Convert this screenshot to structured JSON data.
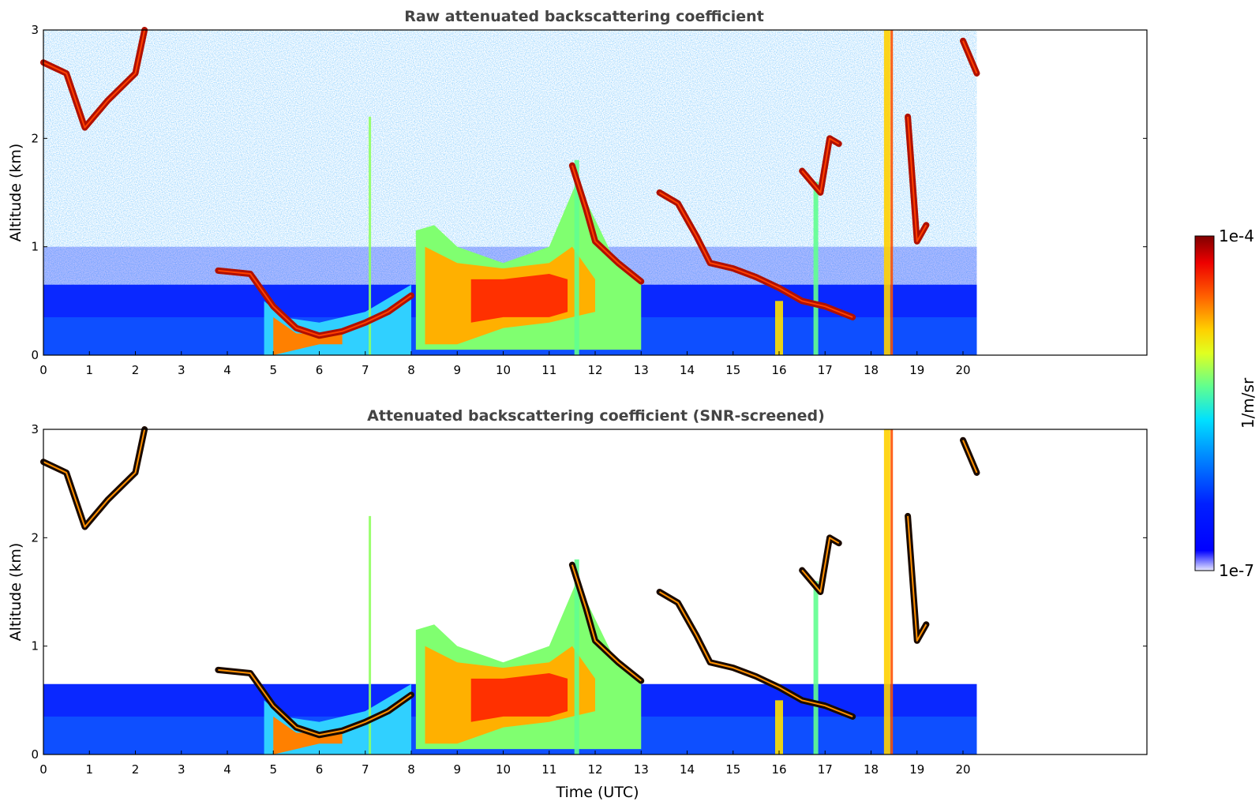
{
  "chart_data": [
    {
      "type": "heatmap",
      "title": "Raw attenuated backscattering coefficient",
      "ylabel": "Altitude (km)",
      "xlabel": "",
      "xlim": [
        0,
        24
      ],
      "ylim": [
        0,
        3
      ],
      "xticks": [
        "0",
        "1",
        "2",
        "3",
        "4",
        "5",
        "6",
        "7",
        "8",
        "9",
        "10",
        "11",
        "12",
        "13",
        "14",
        "15",
        "16",
        "17",
        "18",
        "19",
        "20"
      ],
      "yticks": [
        "0",
        "1",
        "2",
        "3"
      ],
      "data_end_time": 20.3,
      "features": [
        {
          "kind": "cloud_layer",
          "points": [
            [
              0,
              2.7
            ],
            [
              0.5,
              2.6
            ],
            [
              1,
              2.2
            ],
            [
              1.5,
              2.4
            ],
            [
              2,
              2.6
            ],
            [
              2.2,
              3.0
            ]
          ]
        },
        {
          "kind": "boundary_layer_top",
          "points": [
            [
              3.8,
              0.75
            ],
            [
              4.5,
              0.72
            ],
            [
              5,
              0.45
            ],
            [
              5.5,
              0.25
            ],
            [
              6,
              0.2
            ],
            [
              6.5,
              0.25
            ],
            [
              7,
              0.3
            ],
            [
              7.5,
              0.4
            ],
            [
              8,
              0.6
            ]
          ]
        },
        {
          "kind": "aerosol_plume",
          "points": [
            [
              8.2,
              0.2,
              1.2
            ],
            [
              9,
              0.2,
              1.0
            ],
            [
              10,
              0.3,
              0.9
            ],
            [
              11,
              0.3,
              1.0
            ],
            [
              11.5,
              0.4,
              1.6
            ]
          ]
        },
        {
          "kind": "cloud_layer",
          "points": [
            [
              11.5,
              1.8
            ],
            [
              12,
              1.0
            ],
            [
              12.5,
              0.8
            ],
            [
              13,
              0.65
            ]
          ]
        },
        {
          "kind": "cloud_layer",
          "points": [
            [
              13.5,
              1.5
            ],
            [
              14,
              1.3
            ],
            [
              14.5,
              0.9
            ],
            [
              15,
              0.8
            ],
            [
              15.5,
              0.75
            ],
            [
              16,
              0.65
            ],
            [
              16.5,
              0.5
            ],
            [
              17,
              0.45
            ],
            [
              17.5,
              0.35
            ]
          ]
        },
        {
          "kind": "cloud_layer",
          "points": [
            [
              16.4,
              1.7
            ],
            [
              16.8,
              1.5
            ],
            [
              17.0,
              2.0
            ],
            [
              17.3,
              1.9
            ]
          ]
        },
        {
          "kind": "precipitation",
          "points": [
            [
              16.0,
              0,
              0.5
            ],
            [
              18.3,
              0,
              3.0
            ]
          ]
        },
        {
          "kind": "cloud_layer",
          "points": [
            [
              18.7,
              2.2
            ],
            [
              19,
              1.0
            ],
            [
              19.2,
              1.2
            ],
            [
              20.2,
              2.6
            ]
          ]
        }
      ]
    },
    {
      "type": "heatmap",
      "title": "Attenuated backscattering coefficient (SNR-screened)",
      "ylabel": "Altitude (km)",
      "xlabel": "Time (UTC)",
      "xlim": [
        0,
        24
      ],
      "ylim": [
        0,
        3
      ],
      "xticks": [
        "0",
        "1",
        "2",
        "3",
        "4",
        "5",
        "6",
        "7",
        "8",
        "9",
        "10",
        "11",
        "12",
        "13",
        "14",
        "15",
        "16",
        "17",
        "18",
        "19",
        "20"
      ],
      "yticks": [
        "0",
        "1",
        "2",
        "3"
      ],
      "data_end_time": 20.3,
      "screened": true
    }
  ],
  "colorbar": {
    "label": "1/m/sr",
    "min_label": "1e-7",
    "max_label": "1e-4",
    "scale": "log",
    "colormap": "jet",
    "colors": [
      "#e8e8ff",
      "#0000ff",
      "#0080ff",
      "#00e5ff",
      "#7fff80",
      "#ffff00",
      "#ff8000",
      "#ff0000",
      "#800000"
    ]
  }
}
